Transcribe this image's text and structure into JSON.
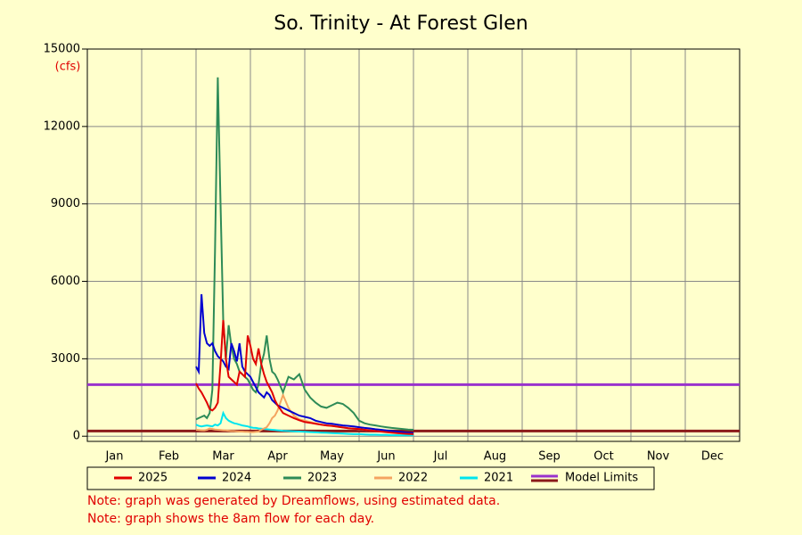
{
  "chart_data": {
    "type": "line",
    "title": "So. Trinity - At Forest Glen",
    "y_unit": "(cfs)",
    "x": [
      2.0,
      2.05,
      2.1,
      2.15,
      2.2,
      2.25,
      2.3,
      2.35,
      2.4,
      2.45,
      2.5,
      2.55,
      2.6,
      2.65,
      2.7,
      2.75,
      2.8,
      2.85,
      2.9,
      2.95,
      3.0,
      3.05,
      3.1,
      3.15,
      3.2,
      3.25,
      3.3,
      3.35,
      3.4,
      3.45,
      3.5,
      3.6,
      3.7,
      3.8,
      3.9,
      4.0,
      4.1,
      4.2,
      4.3,
      4.4,
      4.5,
      4.6,
      4.7,
      4.8,
      4.9,
      5.0,
      5.1,
      5.2,
      5.3,
      5.4,
      5.5,
      5.6,
      5.7,
      5.8,
      5.9,
      6.0
    ],
    "series": [
      {
        "name": "2025",
        "color": "#e00000",
        "values": [
          2050,
          1850,
          1700,
          1500,
          1300,
          1050,
          1000,
          1100,
          1300,
          2800,
          4500,
          3000,
          2300,
          2200,
          2100,
          2000,
          2500,
          2400,
          2300,
          3900,
          3500,
          3000,
          2800,
          3400,
          2800,
          2400,
          2100,
          1900,
          1700,
          1400,
          1200,
          900,
          800,
          700,
          620,
          550,
          520,
          480,
          450,
          420,
          400,
          370,
          340,
          310,
          290,
          280,
          250,
          220,
          200,
          180,
          160,
          140,
          120,
          100,
          90,
          80
        ]
      },
      {
        "name": "2024",
        "color": "#0000d0",
        "values": [
          2700,
          2500,
          5500,
          4000,
          3600,
          3500,
          3600,
          3300,
          3100,
          3000,
          2900,
          2700,
          2600,
          3600,
          3300,
          2900,
          3600,
          2700,
          2500,
          2400,
          2300,
          2100,
          1900,
          1700,
          1600,
          1500,
          1700,
          1600,
          1400,
          1300,
          1200,
          1100,
          1000,
          900,
          800,
          750,
          700,
          600,
          550,
          500,
          480,
          450,
          420,
          400,
          380,
          350,
          320,
          300,
          270,
          250,
          220,
          200,
          180,
          160,
          140,
          120
        ]
      },
      {
        "name": "2023",
        "color": "#2e8b57",
        "values": [
          650,
          700,
          750,
          800,
          700,
          900,
          1800,
          7200,
          13900,
          9000,
          4500,
          3000,
          4300,
          3500,
          3000,
          2800,
          2500,
          2400,
          2300,
          2200,
          2000,
          1800,
          1700,
          2000,
          2800,
          3200,
          3900,
          3000,
          2500,
          2400,
          2200,
          1700,
          2300,
          2200,
          2400,
          1800,
          1500,
          1300,
          1150,
          1100,
          1200,
          1300,
          1250,
          1100,
          900,
          600,
          500,
          450,
          420,
          380,
          350,
          320,
          300,
          280,
          260,
          250
        ]
      },
      {
        "name": "2022",
        "color": "#f4a460",
        "values": [
          250,
          240,
          230,
          220,
          250,
          300,
          280,
          260,
          250,
          240,
          230,
          220,
          210,
          200,
          200,
          190,
          180,
          180,
          170,
          170,
          160,
          160,
          170,
          180,
          250,
          300,
          350,
          500,
          700,
          800,
          1000,
          1600,
          1100,
          800,
          650,
          600,
          550,
          500,
          450,
          420,
          400,
          370,
          340,
          310,
          290,
          270,
          250,
          230,
          210,
          200,
          190,
          170,
          150,
          130,
          110,
          100
        ]
      },
      {
        "name": "2021",
        "color": "#00e5ee",
        "values": [
          450,
          400,
          380,
          400,
          420,
          400,
          380,
          450,
          420,
          500,
          900,
          700,
          600,
          550,
          500,
          480,
          450,
          420,
          400,
          380,
          350,
          330,
          320,
          300,
          290,
          280,
          270,
          260,
          250,
          240,
          230,
          210,
          200,
          190,
          180,
          170,
          160,
          150,
          140,
          130,
          120,
          110,
          100,
          90,
          80,
          80,
          70,
          60,
          60,
          50,
          50,
          40,
          40,
          30,
          30,
          30
        ]
      }
    ],
    "model_limits": {
      "name": "Model Limits",
      "values": [
        200,
        2000
      ],
      "colors": [
        "#8b1a1a",
        "#9932cc"
      ]
    },
    "xlim": [
      0,
      12
    ],
    "xgrid": [
      0,
      1,
      2,
      3,
      4,
      5,
      6,
      7,
      8,
      9,
      10,
      11,
      12
    ],
    "xticks": [
      {
        "value": 0.5,
        "label": "Jan"
      },
      {
        "value": 1.5,
        "label": "Feb"
      },
      {
        "value": 2.5,
        "label": "Mar"
      },
      {
        "value": 3.5,
        "label": "Apr"
      },
      {
        "value": 4.5,
        "label": "May"
      },
      {
        "value": 5.5,
        "label": "Jun"
      },
      {
        "value": 6.5,
        "label": "Jul"
      },
      {
        "value": 7.5,
        "label": "Aug"
      },
      {
        "value": 8.5,
        "label": "Sep"
      },
      {
        "value": 9.5,
        "label": "Oct"
      },
      {
        "value": 10.5,
        "label": "Nov"
      },
      {
        "value": 11.5,
        "label": "Dec"
      }
    ],
    "ylim": [
      -200,
      15000
    ],
    "yticks": [
      0,
      3000,
      6000,
      9000,
      12000,
      15000
    ],
    "grid": true,
    "notes": [
      "Note: graph was generated by Dreamflows, using estimated data.",
      "Note: graph shows the 8am flow for each day."
    ]
  }
}
